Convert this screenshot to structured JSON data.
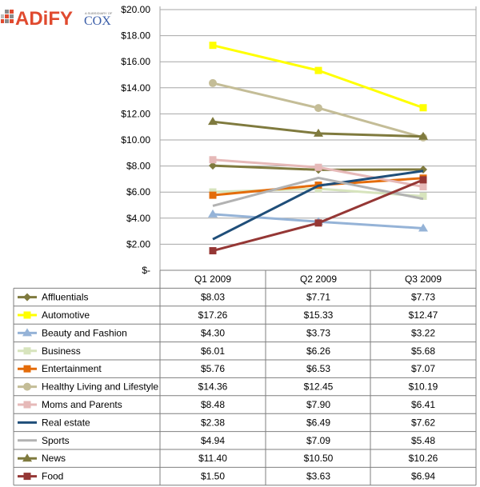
{
  "logo": {
    "brand": "ADiFY",
    "parent": "COX",
    "tagline": "A SUBSIDIARY OF"
  },
  "chart_data": {
    "type": "line",
    "title": "",
    "xlabel": "",
    "ylabel": "",
    "categories": [
      "Q1 2009",
      "Q2 2009",
      "Q3 2009"
    ],
    "ylim": [
      0,
      20
    ],
    "yticks": [
      "$-",
      "$2.00",
      "$4.00",
      "$6.00",
      "$8.00",
      "$10.00",
      "$12.00",
      "$14.00",
      "$16.00",
      "$18.00",
      "$20.00"
    ],
    "grid": true,
    "legend": "table-below",
    "series": [
      {
        "name": "Affluentials",
        "values": [
          8.03,
          7.71,
          7.73
        ],
        "labels": [
          "$8.03",
          "$7.71",
          "$7.73"
        ],
        "color": "#7f7a3e",
        "marker": "diamond"
      },
      {
        "name": "Automotive",
        "values": [
          17.26,
          15.33,
          12.47
        ],
        "labels": [
          "$17.26",
          "$15.33",
          "$12.47"
        ],
        "color": "#ffff00",
        "marker": "square"
      },
      {
        "name": "Beauty and Fashion",
        "values": [
          4.3,
          3.73,
          3.22
        ],
        "labels": [
          "$4.30",
          "$3.73",
          "$3.22"
        ],
        "color": "#95b3d7",
        "marker": "triangle"
      },
      {
        "name": "Business",
        "values": [
          6.01,
          6.26,
          5.68
        ],
        "labels": [
          "$6.01",
          "$6.26",
          "$5.68"
        ],
        "color": "#d7e4bd",
        "marker": "square"
      },
      {
        "name": "Entertainment",
        "values": [
          5.76,
          6.53,
          7.07
        ],
        "labels": [
          "$5.76",
          "$6.53",
          "$7.07"
        ],
        "color": "#e46c0a",
        "marker": "square"
      },
      {
        "name": "Healthy Living and Lifestyle",
        "values": [
          14.36,
          12.45,
          10.19
        ],
        "labels": [
          "$14.36",
          "$12.45",
          "$10.19"
        ],
        "color": "#c4bd97",
        "marker": "circle"
      },
      {
        "name": "Moms and Parents",
        "values": [
          8.48,
          7.9,
          6.41
        ],
        "labels": [
          "$8.48",
          "$7.90",
          "$6.41"
        ],
        "color": "#e6b9b8",
        "marker": "square"
      },
      {
        "name": "Real estate",
        "values": [
          2.38,
          6.49,
          7.62
        ],
        "labels": [
          "$2.38",
          "$6.49",
          "$7.62"
        ],
        "color": "#1f4e79",
        "marker": "none"
      },
      {
        "name": "Sports",
        "values": [
          4.94,
          7.09,
          5.48
        ],
        "labels": [
          "$4.94",
          "$7.09",
          "$5.48"
        ],
        "color": "#b2b2b2",
        "marker": "none"
      },
      {
        "name": "News",
        "values": [
          11.4,
          10.5,
          10.26
        ],
        "labels": [
          "$11.40",
          "$10.50",
          "$10.26"
        ],
        "color": "#7f7a3e",
        "marker": "triangle"
      },
      {
        "name": "Food",
        "values": [
          1.5,
          3.63,
          6.94
        ],
        "labels": [
          "$1.50",
          "$3.63",
          "$6.94"
        ],
        "color": "#953735",
        "marker": "square"
      }
    ]
  }
}
